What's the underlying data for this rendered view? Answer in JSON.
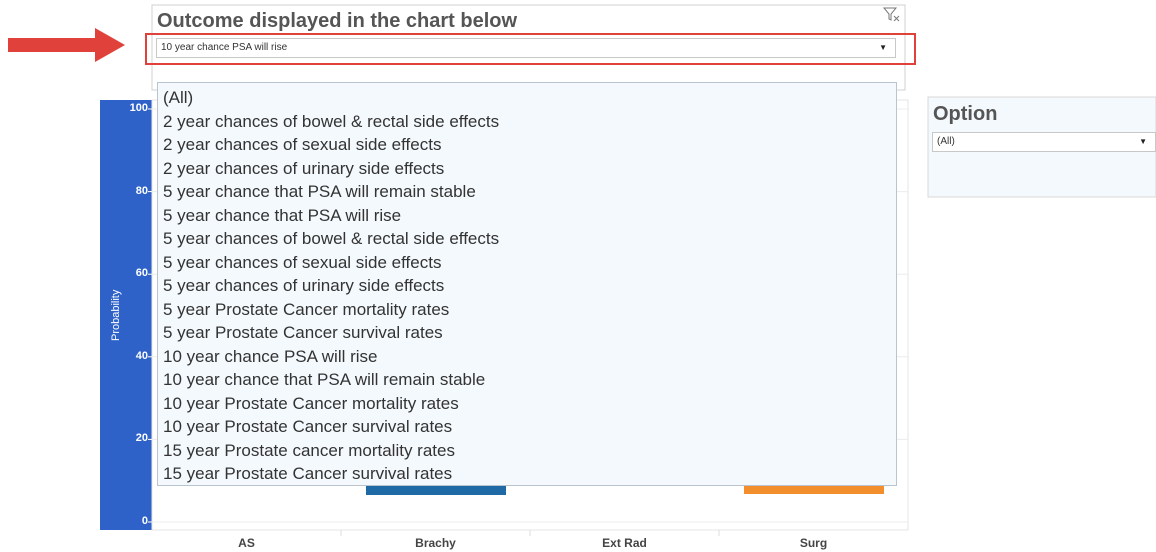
{
  "filter": {
    "title": "Outcome displayed in the chart below",
    "selected": "10 year chance PSA will rise",
    "options": [
      "(All)",
      "2 year chances of bowel & rectal side effects",
      "2 year chances of sexual side effects",
      "2 year chances of urinary side effects",
      "5 year chance that PSA will remain stable",
      "5 year chance that PSA will rise",
      "5 year chances of bowel & rectal side effects",
      "5 year chances of sexual side effects",
      "5 year chances of urinary side effects",
      "5 year Prostate Cancer mortality rates",
      "5 year Prostate Cancer survival rates",
      "10 year chance PSA will rise",
      "10 year chance that PSA will remain stable",
      "10 year Prostate Cancer mortality rates",
      "10 year Prostate Cancer survival rates",
      "15 year Prostate cancer mortality rates",
      "15 year Prostate Cancer survival rates"
    ]
  },
  "chart": {
    "y_label": "Probability",
    "ylim": [
      0,
      100
    ],
    "yticks": [
      0,
      20,
      40,
      60,
      80,
      100
    ],
    "categories": [
      "AS",
      "Brachy",
      "Ext Rad",
      "Surg"
    ]
  },
  "option": {
    "title": "Option",
    "selected": "(All)"
  }
}
